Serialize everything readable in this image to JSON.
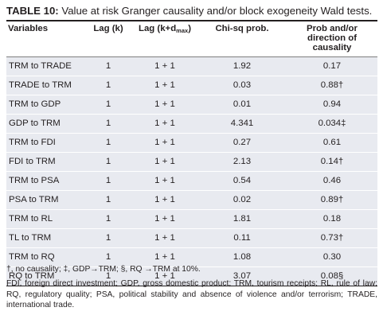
{
  "caption": {
    "label": "TABLE 10:",
    "text": "Value at risk Granger causality and/or block exogeneity Wald tests."
  },
  "headers": {
    "variables": "Variables",
    "lag": "Lag (k)",
    "lag_dmax_prefix": "Lag (k+d",
    "lag_dmax_sub": "max",
    "lag_dmax_suffix": ")",
    "chisq": "Chi-sq prob.",
    "prob": "Prob and/or direction of causality"
  },
  "rows": [
    {
      "variables": "TRM to TRADE",
      "lag": "1",
      "lag_dmax": "1 + 1",
      "chisq": "1.92",
      "prob": "0.17"
    },
    {
      "variables": "TRADE to TRM",
      "lag": "1",
      "lag_dmax": "1 + 1",
      "chisq": "0.03",
      "prob": "0.88†"
    },
    {
      "variables": "TRM to GDP",
      "lag": "1",
      "lag_dmax": "1 + 1",
      "chisq": "0.01",
      "prob": "0.94"
    },
    {
      "variables": "GDP to TRM",
      "lag": "1",
      "lag_dmax": "1 + 1",
      "chisq": "4.341",
      "prob": "0.034‡"
    },
    {
      "variables": "TRM to FDI",
      "lag": "1",
      "lag_dmax": "1 + 1",
      "chisq": "0.27",
      "prob": "0.61"
    },
    {
      "variables": "FDI to TRM",
      "lag": "1",
      "lag_dmax": "1 + 1",
      "chisq": "2.13",
      "prob": "0.14†"
    },
    {
      "variables": "TRM to PSA",
      "lag": "1",
      "lag_dmax": "1 + 1",
      "chisq": "0.54",
      "prob": "0.46"
    },
    {
      "variables": "PSA to TRM",
      "lag": "1",
      "lag_dmax": "1 + 1",
      "chisq": "0.02",
      "prob": "0.89†"
    },
    {
      "variables": "TRM to RL",
      "lag": "1",
      "lag_dmax": "1 + 1",
      "chisq": "1.81",
      "prob": "0.18"
    },
    {
      "variables": "TL to TRM",
      "lag": "1",
      "lag_dmax": "1 + 1",
      "chisq": "0.11",
      "prob": "0.73†"
    },
    {
      "variables": "TRM to RQ",
      "lag": "1",
      "lag_dmax": "1 + 1",
      "chisq": "1.08",
      "prob": "0.30"
    },
    {
      "variables": "RQ to TRM",
      "lag": "1",
      "lag_dmax": "1 + 1",
      "chisq": "3.07",
      "prob": "0.08§"
    }
  ],
  "footnotes": {
    "symbols": "†, no causality; ‡, GDP→TRM; §, RQ →TRM at 10%.",
    "abbreviations": "FDI, foreign direct investment; GDP, gross domestic product; TRM, tourism receipts; RL, rule of law; RQ, regulatory quality; PSA, political stability and absence of violence and/or terrorism; TRADE, international trade."
  }
}
